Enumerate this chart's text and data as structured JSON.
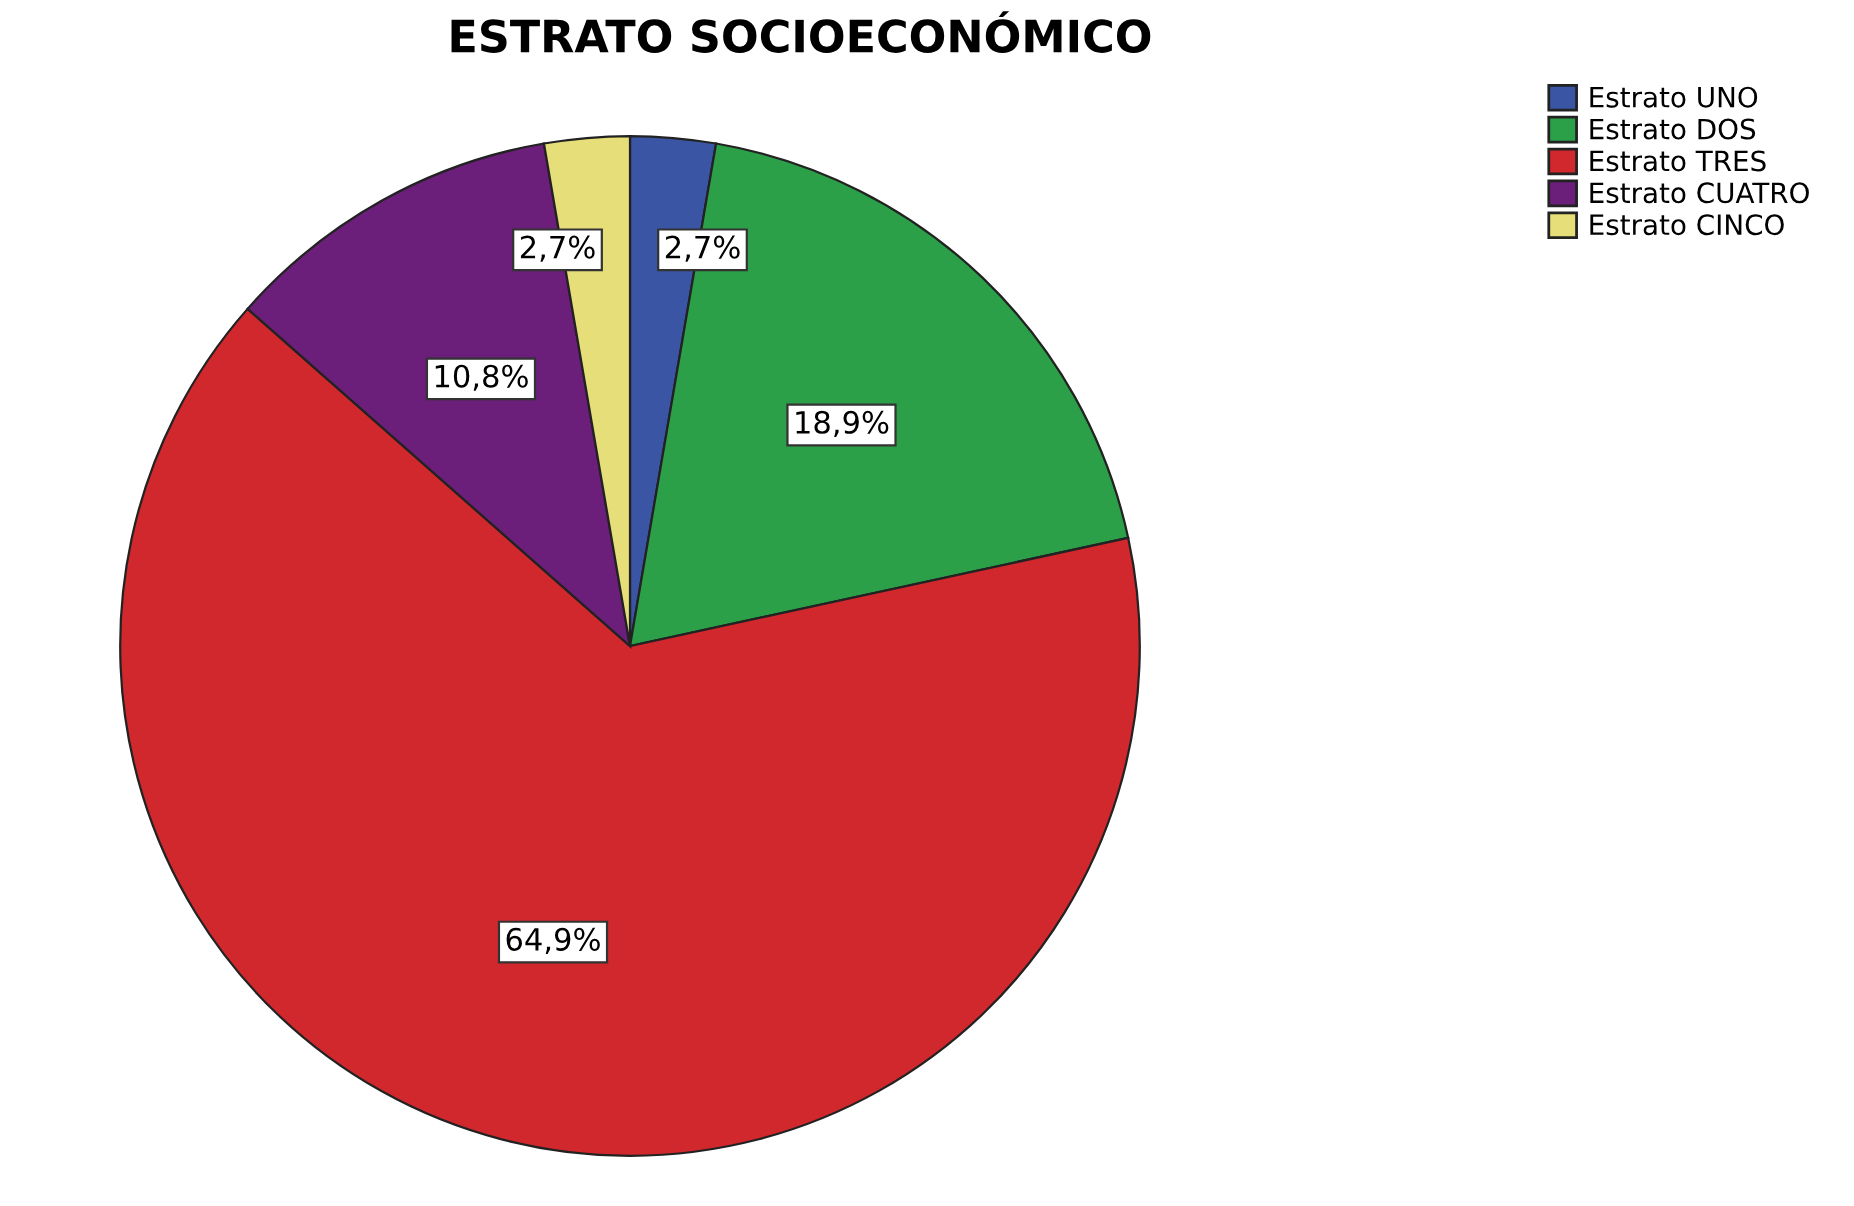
{
  "chart_data": {
    "type": "pie",
    "title": "ESTRATO SOCIOECONÓMICO",
    "categories": [
      "Estrato UNO",
      "Estrato DOS",
      "Estrato TRES",
      "Estrato CUATRO",
      "Estrato CINCO"
    ],
    "values": [
      2.7,
      18.9,
      64.9,
      10.8,
      2.7
    ],
    "colors": [
      "#3a55a4",
      "#2ca048",
      "#d1282e",
      "#6b1f7a",
      "#e6de78"
    ],
    "value_labels": [
      "2,7%",
      "18,9%",
      "64,9%",
      "10,8%",
      "2,7%"
    ],
    "legend": "top right"
  }
}
